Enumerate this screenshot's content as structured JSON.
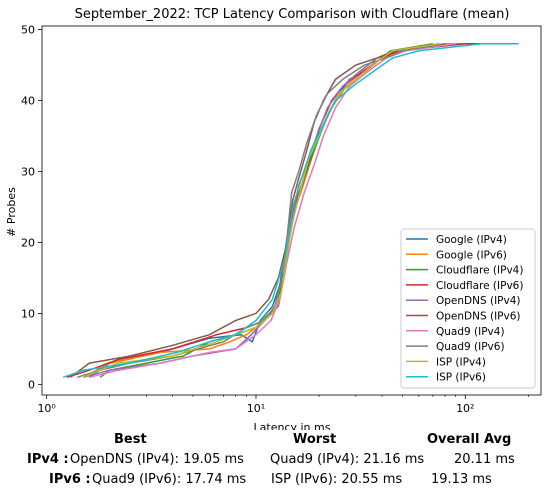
{
  "chart_data": {
    "type": "line",
    "title": "September_2022: TCP Latency Comparison with Cloudflare (mean)",
    "xlabel": "Latency in ms",
    "ylabel": "# Probes",
    "xscale": "log",
    "xlim": [
      0.95,
      230
    ],
    "ylim": [
      -1.5,
      50.5
    ],
    "x_ticks": [
      1,
      10,
      100
    ],
    "x_tick_labels": [
      "10⁰",
      "10¹",
      "10²"
    ],
    "y_ticks": [
      0,
      10,
      20,
      30,
      40,
      50
    ],
    "grid": false,
    "legend_position": "lower-right",
    "series": [
      {
        "name": "Google (IPv4)",
        "color": "#1f77b4",
        "points": [
          [
            1.6,
            1
          ],
          [
            2,
            3
          ],
          [
            3.5,
            4.5
          ],
          [
            6,
            6.5
          ],
          [
            8.5,
            7
          ],
          [
            9.6,
            6
          ],
          [
            10.5,
            9
          ],
          [
            12,
            11
          ],
          [
            13,
            14
          ],
          [
            13.8,
            19
          ],
          [
            14.8,
            24
          ],
          [
            16.5,
            28
          ],
          [
            18,
            31
          ],
          [
            20,
            35
          ],
          [
            22,
            38
          ],
          [
            25,
            41
          ],
          [
            28,
            43
          ],
          [
            33,
            44
          ],
          [
            40,
            46
          ],
          [
            48,
            47
          ],
          [
            90,
            48
          ]
        ]
      },
      {
        "name": "Google (IPv6)",
        "color": "#ff7f0e",
        "points": [
          [
            1.5,
            1
          ],
          [
            2,
            3
          ],
          [
            3.5,
            4.5
          ],
          [
            6,
            5
          ],
          [
            7.5,
            6
          ],
          [
            9,
            7
          ],
          [
            10,
            8
          ],
          [
            12.5,
            11
          ],
          [
            13.5,
            15
          ],
          [
            14,
            20
          ],
          [
            15.5,
            25
          ],
          [
            16.8,
            28
          ],
          [
            18.5,
            32
          ],
          [
            20,
            35
          ],
          [
            23,
            39
          ],
          [
            27,
            42
          ],
          [
            33,
            44
          ],
          [
            40,
            46
          ],
          [
            48,
            47
          ],
          [
            80,
            48
          ],
          [
            140,
            48
          ]
        ]
      },
      {
        "name": "Cloudflare (IPv4)",
        "color": "#2ca02c",
        "points": [
          [
            1.8,
            1
          ],
          [
            2,
            2
          ],
          [
            3,
            3
          ],
          [
            4.5,
            4
          ],
          [
            6,
            6
          ],
          [
            8,
            7
          ],
          [
            10,
            8
          ],
          [
            12.5,
            11
          ],
          [
            13.5,
            15
          ],
          [
            14.3,
            20
          ],
          [
            15.5,
            25
          ],
          [
            17,
            29
          ],
          [
            19,
            33
          ],
          [
            22,
            38
          ],
          [
            25,
            41
          ],
          [
            30,
            43
          ],
          [
            36,
            45
          ],
          [
            44,
            47
          ],
          [
            70,
            48
          ]
        ]
      },
      {
        "name": "Cloudflare (IPv6)",
        "color": "#d62728",
        "points": [
          [
            1.25,
            1
          ],
          [
            1.6,
            2
          ],
          [
            2.2,
            3.5
          ],
          [
            4,
            5
          ],
          [
            6.5,
            7
          ],
          [
            9,
            8
          ],
          [
            11,
            9
          ],
          [
            13,
            12
          ],
          [
            14,
            18
          ],
          [
            14.8,
            24
          ],
          [
            16.5,
            28
          ],
          [
            18.2,
            32
          ],
          [
            20,
            36
          ],
          [
            23,
            40
          ],
          [
            26,
            42
          ],
          [
            32,
            44
          ],
          [
            40,
            46
          ],
          [
            48,
            47
          ],
          [
            100,
            48
          ],
          [
            170,
            48
          ]
        ]
      },
      {
        "name": "OpenDNS (IPv4)",
        "color": "#9467bd",
        "points": [
          [
            1.5,
            1
          ],
          [
            2,
            2
          ],
          [
            3.5,
            3
          ],
          [
            5,
            4
          ],
          [
            8,
            5
          ],
          [
            9.5,
            7
          ],
          [
            11,
            9
          ],
          [
            12.8,
            11
          ],
          [
            13.8,
            16
          ],
          [
            14.8,
            23
          ],
          [
            16,
            28
          ],
          [
            17.5,
            31
          ],
          [
            19.5,
            35
          ],
          [
            22,
            39
          ],
          [
            26,
            42
          ],
          [
            31,
            44
          ],
          [
            38,
            46
          ],
          [
            46,
            47
          ],
          [
            80,
            48
          ]
        ]
      },
      {
        "name": "OpenDNS (IPv6)",
        "color": "#8c564b",
        "points": [
          [
            1.3,
            1
          ],
          [
            1.6,
            3
          ],
          [
            2.5,
            4
          ],
          [
            4,
            5.5
          ],
          [
            6,
            7
          ],
          [
            8,
            9
          ],
          [
            10,
            10
          ],
          [
            11.5,
            12
          ],
          [
            12.8,
            15
          ],
          [
            13.8,
            19
          ],
          [
            15,
            26
          ],
          [
            16,
            29
          ],
          [
            17.5,
            33
          ],
          [
            19,
            37
          ],
          [
            21,
            40
          ],
          [
            24,
            43
          ],
          [
            30,
            45
          ],
          [
            38,
            46
          ],
          [
            46,
            47
          ],
          [
            75,
            48
          ]
        ]
      },
      {
        "name": "Quad9 (IPv4)",
        "color": "#e377c2",
        "points": [
          [
            1.6,
            1
          ],
          [
            2.2,
            2
          ],
          [
            3.5,
            3
          ],
          [
            6,
            4.5
          ],
          [
            8,
            5
          ],
          [
            10,
            7
          ],
          [
            11.8,
            9
          ],
          [
            13,
            12
          ],
          [
            14,
            17
          ],
          [
            15.2,
            22
          ],
          [
            17,
            27
          ],
          [
            19,
            31
          ],
          [
            21,
            35
          ],
          [
            24,
            39
          ],
          [
            28,
            42
          ],
          [
            34,
            44
          ],
          [
            42,
            46
          ],
          [
            52,
            47
          ],
          [
            90,
            48
          ]
        ]
      },
      {
        "name": "Quad9 (IPv6)",
        "color": "#7f7f7f",
        "points": [
          [
            1.4,
            1
          ],
          [
            1.8,
            2
          ],
          [
            2.5,
            3
          ],
          [
            4,
            4
          ],
          [
            7,
            6
          ],
          [
            9,
            8
          ],
          [
            11,
            9
          ],
          [
            12.3,
            11
          ],
          [
            13.3,
            15
          ],
          [
            14,
            20
          ],
          [
            14.8,
            27
          ],
          [
            16,
            30
          ],
          [
            17.5,
            34
          ],
          [
            19.5,
            38
          ],
          [
            22,
            41
          ],
          [
            26,
            43
          ],
          [
            33,
            45
          ],
          [
            42,
            46
          ],
          [
            50,
            47
          ],
          [
            80,
            48
          ]
        ]
      },
      {
        "name": "ISP (IPv4)",
        "color": "#bcbd22",
        "points": [
          [
            1.5,
            1
          ],
          [
            1.8,
            2
          ],
          [
            2.2,
            3
          ],
          [
            4,
            4
          ],
          [
            6.5,
            6
          ],
          [
            8,
            7
          ],
          [
            10,
            8
          ],
          [
            12,
            10
          ],
          [
            13.2,
            13
          ],
          [
            14,
            18
          ],
          [
            15,
            23
          ],
          [
            16.5,
            28
          ],
          [
            18,
            32
          ],
          [
            20,
            35
          ],
          [
            22,
            38
          ],
          [
            25,
            41
          ],
          [
            30,
            43
          ],
          [
            36,
            45
          ],
          [
            45,
            47
          ],
          [
            75,
            48
          ]
        ]
      },
      {
        "name": "ISP (IPv6)",
        "color": "#17becf",
        "points": [
          [
            1.2,
            1
          ],
          [
            1.5,
            2
          ],
          [
            2.5,
            3
          ],
          [
            4.2,
            4.5
          ],
          [
            6,
            6
          ],
          [
            8,
            7
          ],
          [
            10,
            9
          ],
          [
            12,
            12
          ],
          [
            13.8,
            18
          ],
          [
            15,
            25
          ],
          [
            16.5,
            29
          ],
          [
            18.3,
            33
          ],
          [
            20.5,
            36
          ],
          [
            24,
            40
          ],
          [
            29,
            42
          ],
          [
            36,
            44
          ],
          [
            45,
            46
          ],
          [
            60,
            47
          ],
          [
            120,
            48
          ],
          [
            180,
            48
          ]
        ]
      }
    ]
  },
  "summary": {
    "headers": {
      "best": "Best",
      "worst": "Worst",
      "avg": "Overall Avg"
    },
    "rows": [
      {
        "label": "IPv4 :",
        "best": "OpenDNS (IPv4): 19.05 ms",
        "worst": "Quad9 (IPv4): 21.16 ms",
        "avg": "20.11 ms"
      },
      {
        "label": "IPv6 :",
        "best": "Quad9 (IPv6): 17.74 ms",
        "worst": "ISP (IPv6): 20.55 ms",
        "avg": "19.13 ms"
      }
    ]
  }
}
